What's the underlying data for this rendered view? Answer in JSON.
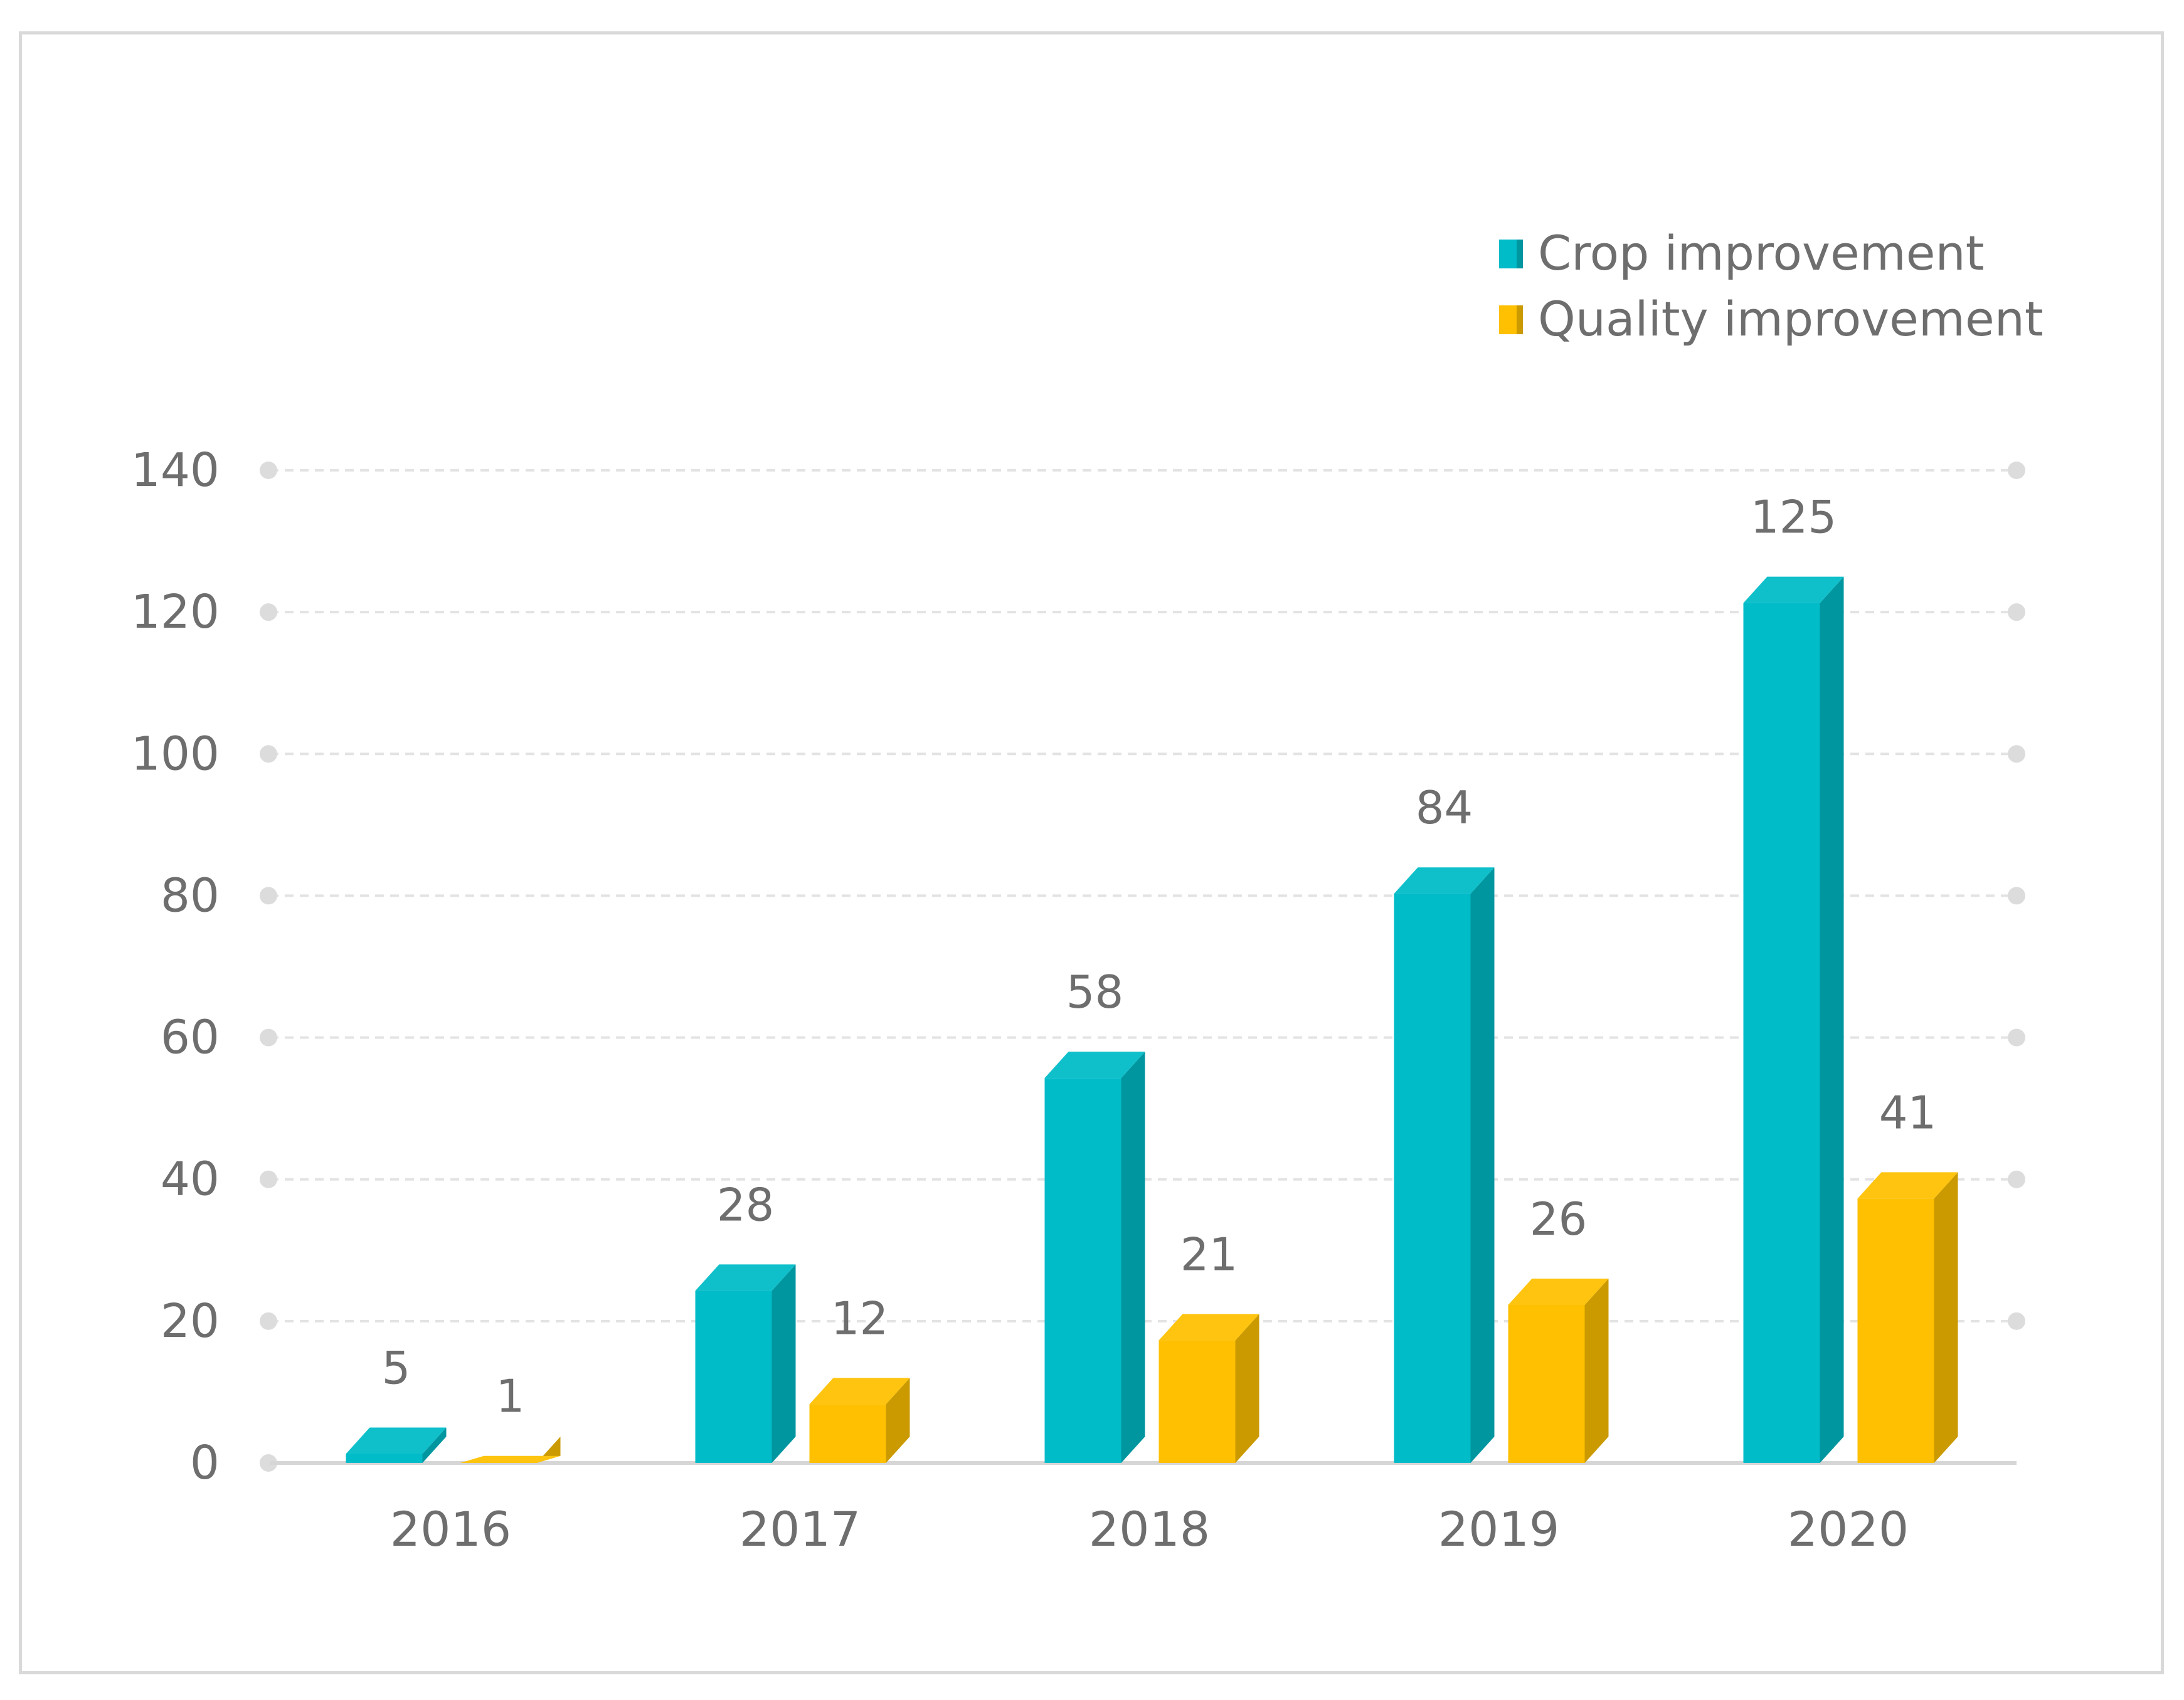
{
  "chart_data": {
    "type": "bar",
    "categories": [
      "2016",
      "2017",
      "2018",
      "2019",
      "2020"
    ],
    "series": [
      {
        "name": "Crop improvement",
        "values": [
          5,
          28,
          58,
          84,
          125
        ],
        "color": "#00bcc8"
      },
      {
        "name": "Quality improvement",
        "values": [
          1,
          12,
          21,
          26,
          41
        ],
        "color": "#fec000"
      }
    ],
    "ylim": [
      0,
      140
    ],
    "yticks": [
      0,
      20,
      40,
      60,
      80,
      100,
      120,
      140
    ],
    "grid": true,
    "legend": "top-right",
    "style": "3d-columns",
    "data_labels": true
  }
}
